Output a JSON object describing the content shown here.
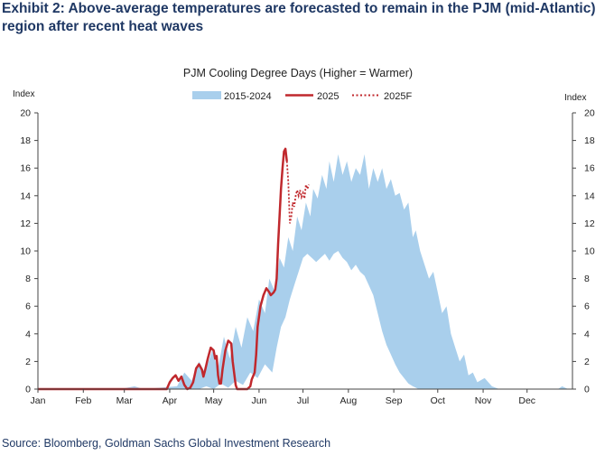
{
  "exhibit_title": "Exhibit 2: Above-average temperatures are forecasted to remain in the PJM (mid-Atlantic) region after recent heat waves",
  "source": "Source: Bloomberg, Goldman Sachs Global Investment Research",
  "colors": {
    "band": "#a9cfec",
    "actual": "#c0282d",
    "forecast": "#c0282d",
    "title": "#1f3864"
  },
  "chart_data": {
    "type": "area",
    "title": "PJM  Cooling Degree Days (Higher = Warmer)",
    "ylabel_left": "Index",
    "ylabel_right": "Index",
    "ylim": [
      0,
      20
    ],
    "yticks": [
      "0",
      "2",
      "4",
      "6",
      "8",
      "10",
      "12",
      "14",
      "16",
      "18",
      "20"
    ],
    "xlim": [
      0,
      365
    ],
    "xticks": [
      {
        "label": "Jan",
        "day": 0
      },
      {
        "label": "Feb",
        "day": 31
      },
      {
        "label": "Mar",
        "day": 59
      },
      {
        "label": "Apr",
        "day": 90
      },
      {
        "label": "May",
        "day": 120
      },
      {
        "label": "Jun",
        "day": 151
      },
      {
        "label": "Jul",
        "day": 181
      },
      {
        "label": "Aug",
        "day": 212
      },
      {
        "label": "Sep",
        "day": 243
      },
      {
        "label": "Oct",
        "day": 273
      },
      {
        "label": "Nov",
        "day": 304
      },
      {
        "label": "Dec",
        "day": 334
      }
    ],
    "legend": [
      "2015-2024",
      "2025",
      "2025F"
    ],
    "series": [
      {
        "name": "2015-2024",
        "kind": "band",
        "upper": [
          [
            0,
            0
          ],
          [
            56,
            0
          ],
          [
            66,
            0.2
          ],
          [
            72,
            0
          ],
          [
            95,
            0.2
          ],
          [
            100,
            1.2
          ],
          [
            105,
            0.6
          ],
          [
            110,
            2
          ],
          [
            114,
            1.2
          ],
          [
            119,
            2.8
          ],
          [
            123,
            1.5
          ],
          [
            127,
            3.8
          ],
          [
            131,
            2.2
          ],
          [
            135,
            4.5
          ],
          [
            139,
            3
          ],
          [
            143,
            5.2
          ],
          [
            147,
            4.2
          ],
          [
            151,
            6.5
          ],
          [
            155,
            5.5
          ],
          [
            158,
            8
          ],
          [
            162,
            7
          ],
          [
            165,
            9.5
          ],
          [
            168,
            8.8
          ],
          [
            171,
            11
          ],
          [
            174,
            10
          ],
          [
            177,
            12.5
          ],
          [
            180,
            11.5
          ],
          [
            183,
            13.5
          ],
          [
            186,
            12.5
          ],
          [
            188,
            14.5
          ],
          [
            191,
            13.8
          ],
          [
            194,
            15.5
          ],
          [
            197,
            14.5
          ],
          [
            199,
            16.5
          ],
          [
            202,
            15
          ],
          [
            205,
            17
          ],
          [
            208,
            15.5
          ],
          [
            211,
            16.5
          ],
          [
            214,
            15
          ],
          [
            217,
            16
          ],
          [
            220,
            15.5
          ],
          [
            223,
            17
          ],
          [
            226,
            14.5
          ],
          [
            229,
            16
          ],
          [
            232,
            15
          ],
          [
            235,
            16
          ],
          [
            238,
            14.5
          ],
          [
            241,
            15.2
          ],
          [
            244,
            14
          ],
          [
            247,
            14.2
          ],
          [
            250,
            13
          ],
          [
            253,
            13.5
          ],
          [
            256,
            11
          ],
          [
            258,
            11.5
          ],
          [
            261,
            10
          ],
          [
            264,
            9
          ],
          [
            267,
            8
          ],
          [
            270,
            8.5
          ],
          [
            273,
            7
          ],
          [
            276,
            5.5
          ],
          [
            279,
            6
          ],
          [
            282,
            4
          ],
          [
            285,
            3
          ],
          [
            288,
            2
          ],
          [
            291,
            2.5
          ],
          [
            294,
            1
          ],
          [
            297,
            1.2
          ],
          [
            300,
            0.5
          ],
          [
            305,
            0.8
          ],
          [
            310,
            0.2
          ],
          [
            315,
            0
          ],
          [
            355,
            0
          ],
          [
            358,
            0.2
          ],
          [
            362,
            0
          ]
        ],
        "lower": [
          [
            0,
            0
          ],
          [
            110,
            0
          ],
          [
            115,
            0.2
          ],
          [
            120,
            0
          ],
          [
            125,
            0.4
          ],
          [
            130,
            0.1
          ],
          [
            135,
            0.6
          ],
          [
            140,
            0.3
          ],
          [
            145,
            1.2
          ],
          [
            150,
            0.8
          ],
          [
            155,
            1.8
          ],
          [
            160,
            1.2
          ],
          [
            163,
            3
          ],
          [
            166,
            4.5
          ],
          [
            169,
            5.2
          ],
          [
            172,
            6.5
          ],
          [
            175,
            7.5
          ],
          [
            178,
            8.5
          ],
          [
            181,
            9.5
          ],
          [
            184,
            9.8
          ],
          [
            187,
            9.5
          ],
          [
            190,
            9.2
          ],
          [
            193,
            9.5
          ],
          [
            196,
            9.8
          ],
          [
            199,
            9.3
          ],
          [
            202,
            9.8
          ],
          [
            205,
            10
          ],
          [
            208,
            9.5
          ],
          [
            211,
            9.2
          ],
          [
            214,
            8.6
          ],
          [
            217,
            9
          ],
          [
            220,
            8.5
          ],
          [
            223,
            8.2
          ],
          [
            226,
            7.5
          ],
          [
            229,
            6.8
          ],
          [
            232,
            5.5
          ],
          [
            235,
            4.2
          ],
          [
            238,
            3.2
          ],
          [
            241,
            2.5
          ],
          [
            244,
            1.8
          ],
          [
            247,
            1.2
          ],
          [
            250,
            0.8
          ],
          [
            253,
            0.4
          ],
          [
            256,
            0.2
          ],
          [
            260,
            0
          ]
        ]
      },
      {
        "name": "2025",
        "kind": "line",
        "points": [
          [
            0,
            0
          ],
          [
            88,
            0
          ],
          [
            90,
            0.5
          ],
          [
            92,
            0.8
          ],
          [
            94,
            1
          ],
          [
            96,
            0.6
          ],
          [
            98,
            0.9
          ],
          [
            100,
            0.3
          ],
          [
            102,
            0
          ],
          [
            104,
            0.1
          ],
          [
            106,
            0.5
          ],
          [
            108,
            1.5
          ],
          [
            110,
            1.8
          ],
          [
            112,
            1.4
          ],
          [
            113,
            0.9
          ],
          [
            114,
            1.3
          ],
          [
            116,
            2.2
          ],
          [
            118,
            3
          ],
          [
            120,
            2.8
          ],
          [
            121,
            2.2
          ],
          [
            122,
            2.4
          ],
          [
            123,
            1
          ],
          [
            124,
            0.4
          ],
          [
            125,
            0.4
          ],
          [
            126,
            1.4
          ],
          [
            128,
            2.8
          ],
          [
            130,
            3.5
          ],
          [
            132,
            3.3
          ],
          [
            133,
            2
          ],
          [
            135,
            0.3
          ],
          [
            136,
            0
          ],
          [
            143,
            0
          ],
          [
            145,
            0.2
          ],
          [
            146,
            0.7
          ],
          [
            148,
            1.2
          ],
          [
            149,
            2.5
          ],
          [
            150,
            4.5
          ],
          [
            152,
            6
          ],
          [
            154,
            6.8
          ],
          [
            156,
            7.3
          ],
          [
            158,
            7
          ],
          [
            159,
            6.8
          ],
          [
            161,
            7
          ],
          [
            162,
            7.2
          ],
          [
            163,
            8
          ],
          [
            164,
            10.5
          ],
          [
            165,
            12.5
          ],
          [
            166,
            14.5
          ],
          [
            167,
            16
          ],
          [
            168,
            17.2
          ],
          [
            169,
            17.4
          ],
          [
            170,
            16.5
          ]
        ]
      },
      {
        "name": "2025F",
        "kind": "dotted",
        "points": [
          [
            170,
            16.5
          ],
          [
            171,
            15
          ],
          [
            172,
            12
          ],
          [
            173,
            12.5
          ],
          [
            174,
            13.5
          ],
          [
            175,
            13.2
          ],
          [
            176,
            14
          ],
          [
            177,
            14.4
          ],
          [
            178,
            14
          ],
          [
            179,
            14.4
          ],
          [
            180,
            13.9
          ],
          [
            181,
            14.2
          ],
          [
            182,
            13.8
          ],
          [
            183,
            14.8
          ],
          [
            184,
            14.5
          ],
          [
            185,
            14.8
          ]
        ]
      }
    ]
  }
}
